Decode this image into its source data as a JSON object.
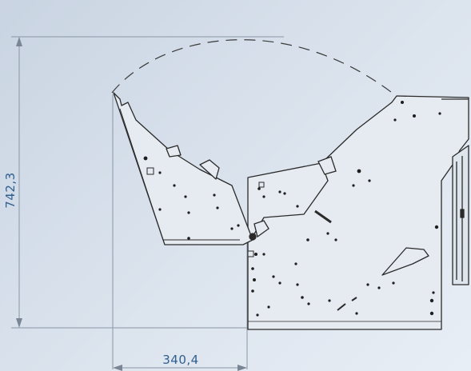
{
  "dimensions": {
    "height_label": "742,3",
    "width_label": "340,4"
  },
  "colors": {
    "background": "#d7e0eb",
    "dimension_text": "#2f5f8f",
    "dimension_line": "#7a8696",
    "outline": "#2a2a2a",
    "fill": "#e6ebf1"
  }
}
